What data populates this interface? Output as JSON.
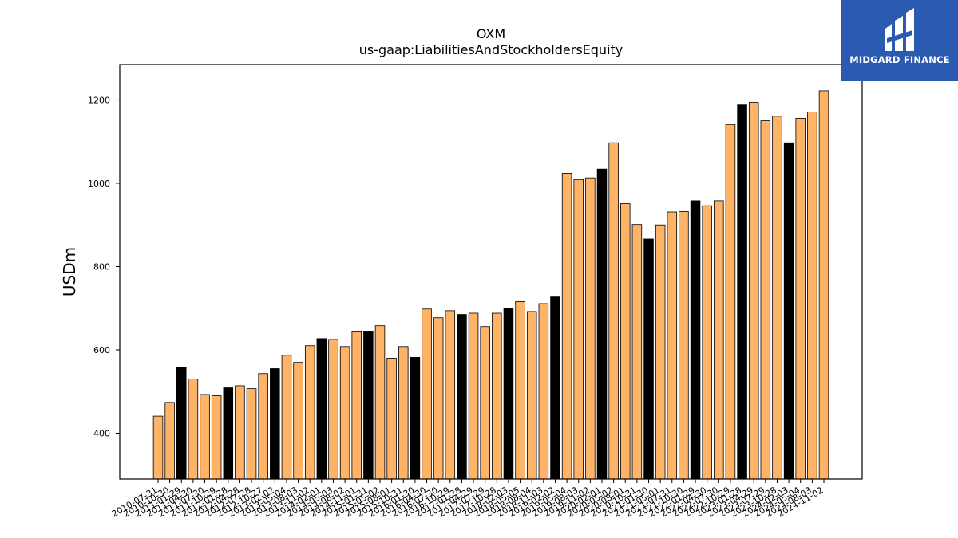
{
  "chart_data": {
    "type": "bar",
    "title": "OXM",
    "subtitle": "us-gaap:LiabilitiesAndStockholdersEquity",
    "ylabel": "USDm",
    "xlabel": "",
    "ylim": [
      290,
      1285
    ],
    "yticks": [
      400,
      600,
      800,
      1000,
      1200
    ],
    "grid": false,
    "colors": {
      "bar": "#ffb366",
      "highlight": "#000000",
      "edge": "#000000"
    },
    "categories": [
      "2010-07-31",
      "2010-10-30",
      "2011-01-29",
      "2011-04-30",
      "2011-07-30",
      "2011-10-29",
      "2012-01-28",
      "2012-04-28",
      "2012-07-28",
      "2012-10-27",
      "2013-02-02",
      "2013-05-04",
      "2013-08-03",
      "2013-11-02",
      "2014-02-01",
      "2014-05-03",
      "2014-08-02",
      "2014-11-01",
      "2015-01-31",
      "2015-05-02",
      "2015-08-01",
      "2015-10-31",
      "2016-01-30",
      "2016-04-30",
      "2016-07-30",
      "2016-10-29",
      "2017-01-28",
      "2017-04-29",
      "2017-07-29",
      "2017-10-28",
      "2018-02-03",
      "2018-05-05",
      "2018-08-04",
      "2018-11-03",
      "2019-02-02",
      "2019-05-04",
      "2019-08-03",
      "2019-11-02",
      "2020-02-01",
      "2020-05-02",
      "2020-08-01",
      "2020-10-31",
      "2021-01-30",
      "2021-05-01",
      "2021-07-31",
      "2021-10-30",
      "2022-01-29",
      "2022-04-30",
      "2022-07-30",
      "2022-10-29",
      "2023-01-28",
      "2023-04-29",
      "2023-07-29",
      "2023-10-28",
      "2024-02-03",
      "2024-05-04",
      "2024-08-03",
      "2024-11-02"
    ],
    "tick_labels": [
      "2010-07-31",
      "2010-10-30",
      "2011-01-29",
      "2011-04-30",
      "2011-07-30",
      "2011-10-29",
      "2012-01-28",
      "2012-04-28",
      "2012-07-28",
      "2012-10-27",
      "2013-02-02",
      "2013-05-04",
      "2013-08-03",
      "2013-11-02",
      "2014-02-01",
      "2014-05-03",
      "2014-08-02",
      "2014-11-01",
      "2015-01-31",
      "2015-05-02",
      "2015-08-01",
      "2015-10-31",
      "2016-01-30",
      "2016-04-30",
      "2016-07-30",
      "2016-10-29",
      "2017-01-28",
      "2017-04-29",
      "2017-07-29",
      "2017-10-28",
      "2018-02-03",
      "2018-05-05",
      "2018-08-04",
      "2018-11-03",
      "2019-02-02",
      "2019-05-04",
      "2019-08-03",
      "2019-11-02",
      "2020-02-01",
      "2020-05-02",
      "2020-08-01",
      "2020-10-31",
      "2021-01-30",
      "2021-05-01",
      "2021-07-31",
      "2021-10-30",
      "2022-01-29",
      "2022-04-30",
      "2022-07-30",
      "2022-10-29",
      "2023-01-28",
      "2023-04-29",
      "2023-07-29",
      "2023-10-28",
      "2024-02-03",
      "2024-05-04",
      "2024-08-03",
      "2024-11-02"
    ],
    "values": [
      441,
      474,
      559,
      530,
      493,
      490,
      509,
      514,
      507,
      543,
      555,
      587,
      570,
      610,
      627,
      625,
      608,
      645,
      645,
      658,
      580,
      608,
      582,
      698,
      677,
      694,
      685,
      688,
      656,
      688,
      700,
      716,
      692,
      711,
      727,
      1024,
      1009,
      1013,
      1034,
      1097,
      951,
      901,
      866,
      900,
      931,
      932,
      958,
      946,
      958,
      1141,
      1188,
      1194,
      1150,
      1161,
      1097,
      1156,
      1171,
      1222
    ],
    "highlighted": [
      false,
      false,
      true,
      false,
      false,
      false,
      true,
      false,
      false,
      false,
      true,
      false,
      false,
      false,
      true,
      false,
      false,
      false,
      true,
      false,
      false,
      false,
      true,
      false,
      false,
      false,
      true,
      false,
      false,
      false,
      true,
      false,
      false,
      false,
      true,
      false,
      false,
      false,
      true,
      false,
      false,
      false,
      true,
      false,
      false,
      false,
      true,
      false,
      false,
      false,
      true,
      false,
      false,
      false,
      true,
      false,
      false,
      false
    ]
  },
  "logo": {
    "text": "MIDGARD FINANCE",
    "icon": "midgard-logo-icon"
  }
}
